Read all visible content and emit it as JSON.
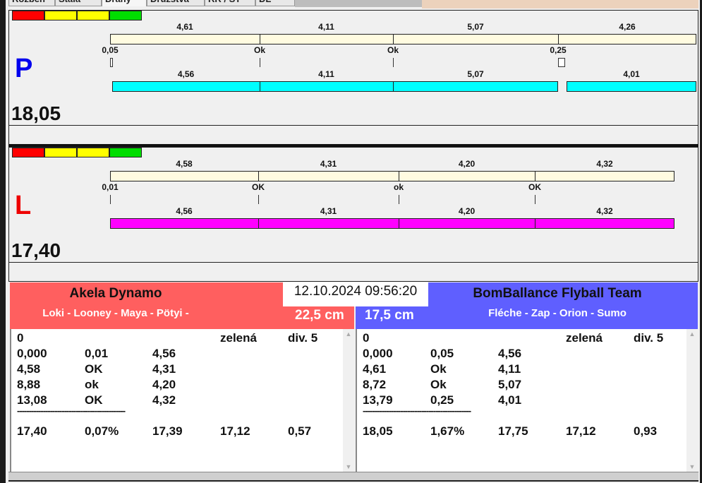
{
  "tabs": [
    "Rozběh",
    "Stála",
    "Dráhy",
    "Družstva",
    "RR / ST",
    "DL"
  ],
  "legend_colors": [
    "#ff0000",
    "#ffff00",
    "#ffff00",
    "#00dd00"
  ],
  "lanes": [
    {
      "letter": "P",
      "letter_color": "#0000ee",
      "score": "18,05",
      "bar_color": "#00ffff",
      "top_labels": [
        "4,61",
        "4,11",
        "5,07",
        "4,26"
      ],
      "mid_labels": [
        "0,05",
        "Ok",
        "Ok",
        "0,25"
      ],
      "bottom_labels": [
        "4,56",
        "4,11",
        "5,07",
        "4,01"
      ]
    },
    {
      "letter": "L",
      "letter_color": "#ee0000",
      "score": "17,40",
      "bar_color": "#ff00ff",
      "top_labels": [
        "4,58",
        "4,31",
        "4,20",
        "4,32"
      ],
      "mid_labels": [
        "0,01",
        "OK",
        "ok",
        "OK"
      ],
      "bottom_labels": [
        "4,56",
        "4,31",
        "4,20",
        "4,32"
      ]
    }
  ],
  "datetime": "12.10.2024 09:56:20",
  "teams": [
    {
      "name": "Akela Dynamo",
      "dogs": "Loki - Looney - Maya - Pötyi -",
      "height": "22,5 cm",
      "color": "#ff5f5f",
      "rows": [
        [
          "0",
          "",
          "",
          "zelená",
          "div. 5"
        ],
        [
          "0,000",
          "0,01",
          "4,56",
          "",
          ""
        ],
        [
          "4,58",
          "OK",
          "4,31",
          "",
          ""
        ],
        [
          "8,88",
          "ok",
          "4,20",
          "",
          ""
        ],
        [
          "13,08",
          "OK",
          "4,32",
          "",
          ""
        ]
      ],
      "separator": "----------------------------------------------",
      "totals": [
        "17,40",
        "0,07%",
        "17,39",
        "17,12",
        "0,57"
      ]
    },
    {
      "name": "BomBallance Flyball Team",
      "dogs": "Fléche - Zap - Orion - Sumo",
      "height": "17,5 cm",
      "color": "#5f5fff",
      "rows": [
        [
          "0",
          "",
          "",
          "zelená",
          "div. 5"
        ],
        [
          "0,000",
          "0,05",
          "4,56",
          "",
          ""
        ],
        [
          "4,61",
          "Ok",
          "4,11",
          "",
          ""
        ],
        [
          "8,72",
          "Ok",
          "5,07",
          "",
          ""
        ],
        [
          "13,79",
          "0,25",
          "4,01",
          "",
          ""
        ]
      ],
      "separator": "----------------------------------------------",
      "totals": [
        "18,05",
        "1,67%",
        "17,75",
        "17,12",
        "0,93"
      ]
    }
  ]
}
